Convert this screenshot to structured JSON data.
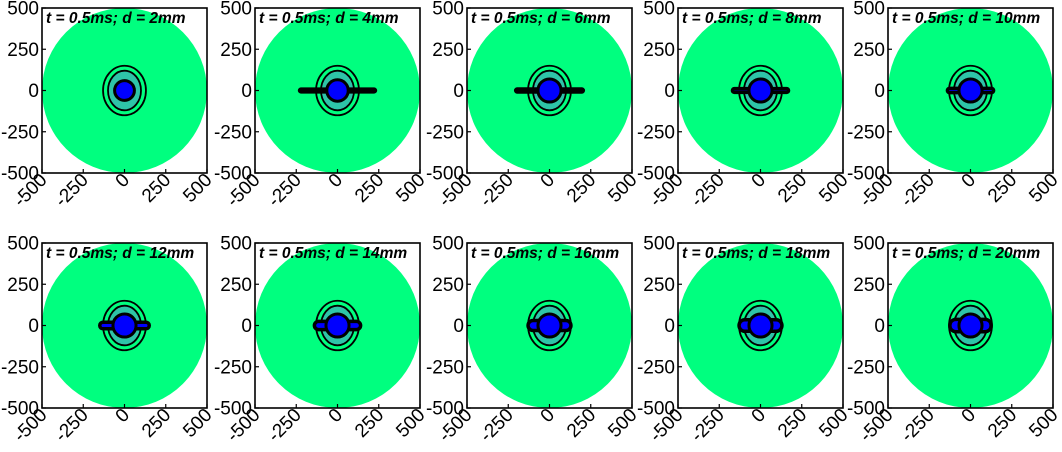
{
  "colors": {
    "domain": "#00ff7f",
    "inner_ring": "#2ec4a8",
    "core": "#0000ff",
    "outline": "#000000",
    "background": "#ffffff"
  },
  "chart_data": {
    "type": "heatmap",
    "layout": "2 rows x 5 columns of small-multiple panels",
    "xlim": [
      -500,
      500
    ],
    "ylim": [
      -500,
      500
    ],
    "xticks": [
      "-500",
      "-250",
      "0",
      "250",
      "500"
    ],
    "yticks": [
      "500",
      "250",
      "0",
      "-250",
      "-500"
    ],
    "grid": false,
    "panels": [
      {
        "title": "t = 0.5ms; d = 2mm",
        "d_mm": 2,
        "core_r": 60,
        "wing_w": 0,
        "wing_h": 0
      },
      {
        "title": "t = 0.5ms; d = 4mm",
        "d_mm": 4,
        "core_r": 65,
        "wing_w": 230,
        "wing_h": 16
      },
      {
        "title": "t = 0.5ms; d = 6mm",
        "d_mm": 6,
        "core_r": 70,
        "wing_w": 205,
        "wing_h": 18
      },
      {
        "title": "t = 0.5ms; d = 8mm",
        "d_mm": 8,
        "core_r": 70,
        "wing_w": 170,
        "wing_h": 22
      },
      {
        "title": "t = 0.5ms; d = 10mm",
        "d_mm": 10,
        "core_r": 70,
        "wing_w": 140,
        "wing_h": 26
      },
      {
        "title": "t = 0.5ms; d = 12mm",
        "d_mm": 12,
        "core_r": 70,
        "wing_w": 150,
        "wing_h": 40
      },
      {
        "title": "t = 0.5ms; d = 14mm",
        "d_mm": 14,
        "core_r": 70,
        "wing_w": 140,
        "wing_h": 50
      },
      {
        "title": "t = 0.5ms; d = 16mm",
        "d_mm": 16,
        "core_r": 70,
        "wing_w": 130,
        "wing_h": 60
      },
      {
        "title": "t = 0.5ms; d = 18mm",
        "d_mm": 18,
        "core_r": 70,
        "wing_w": 130,
        "wing_h": 70
      },
      {
        "title": "t = 0.5ms; d = 20mm",
        "d_mm": 20,
        "core_r": 70,
        "wing_w": 125,
        "wing_h": 75
      }
    ],
    "domain_radius": 500,
    "rings": [
      {
        "rx": 100,
        "ry": 120
      },
      {
        "rx": 130,
        "ry": 150
      }
    ]
  }
}
